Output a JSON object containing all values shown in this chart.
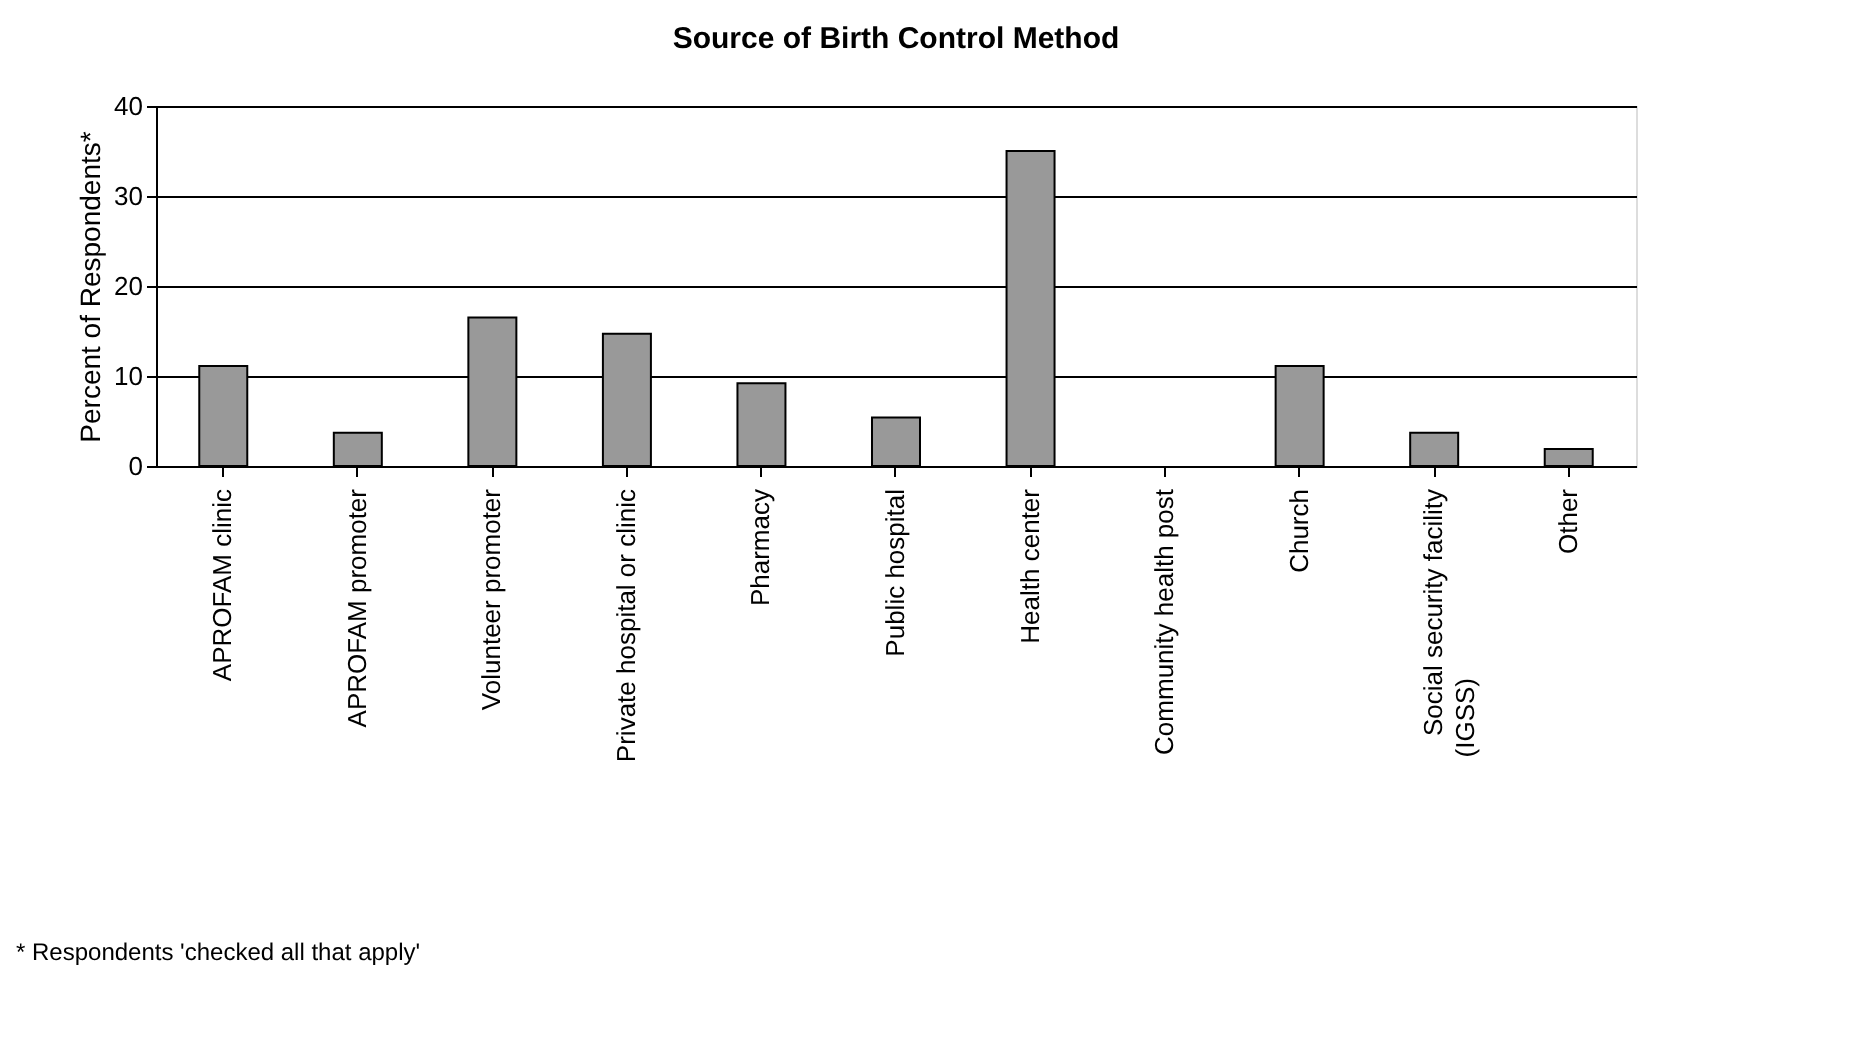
{
  "chart_data": {
    "type": "bar",
    "title": "Source of Birth Control Method",
    "ylabel": "Percent of Respondents*",
    "categories": [
      "APROFAM clinic",
      "APROFAM promoter",
      "Volunteer promoter",
      "Private hospital or clinic",
      "Pharmacy",
      "Public hospital",
      "Health center",
      "Community health post",
      "Church",
      "Social security facility (IGSS)",
      "Other"
    ],
    "values": [
      11.1,
      3.7,
      16.5,
      14.7,
      9.2,
      5.4,
      35.0,
      0,
      11.1,
      3.7,
      1.9
    ],
    "color": "#999999",
    "ylim": [
      0,
      40
    ],
    "yticks": [
      0,
      10,
      20,
      30,
      40
    ],
    "grid": "y",
    "annotations": [
      "* Respondents 'checked all that apply'"
    ]
  }
}
